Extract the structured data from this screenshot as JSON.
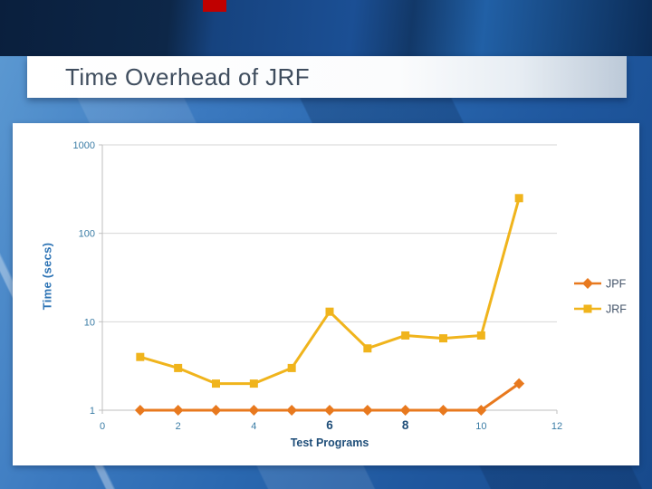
{
  "slide": {
    "title": "Time Overhead of JRF"
  },
  "colors": {
    "accent_red": "#C00000",
    "gridline": "#D6D6D6",
    "axis": "#BFBFBF",
    "tick_teal": "#3A7CA5",
    "axis_label_dark": "#1F4E79",
    "axis_label_blue": "#2E74B5",
    "legend_text": "#44546A",
    "jpf_orange": "#E8791E",
    "jrf_gold": "#F0B41C",
    "title_text": "#3F4D5E"
  },
  "chart_data": {
    "type": "line",
    "title": "",
    "xlabel": "Test Programs",
    "ylabel": "Time (secs)",
    "y_scale": "log",
    "xlim": [
      0,
      12
    ],
    "ylim": [
      1,
      1000
    ],
    "grid": true,
    "legend_position": "right",
    "x_ticks": [
      "0",
      "2",
      "4",
      "6",
      "8",
      "10",
      "12"
    ],
    "emphasized_x_ticks": [
      "6",
      "8"
    ],
    "y_ticks": [
      "1",
      "10",
      "100",
      "1000"
    ],
    "series": [
      {
        "name": "JPF",
        "color": "#E8791E",
        "marker": "diamond",
        "x": [
          1,
          2,
          3,
          4,
          5,
          6,
          7,
          8,
          9,
          10,
          11
        ],
        "values": [
          1,
          1,
          1,
          1,
          1,
          1,
          1,
          1,
          1,
          1,
          2
        ]
      },
      {
        "name": "JRF",
        "color": "#F0B41C",
        "marker": "square",
        "x": [
          1,
          2,
          3,
          4,
          5,
          6,
          7,
          8,
          9,
          10,
          11
        ],
        "values": [
          4,
          3,
          2,
          2,
          3,
          13,
          5,
          7,
          6.5,
          7,
          250
        ]
      }
    ]
  }
}
